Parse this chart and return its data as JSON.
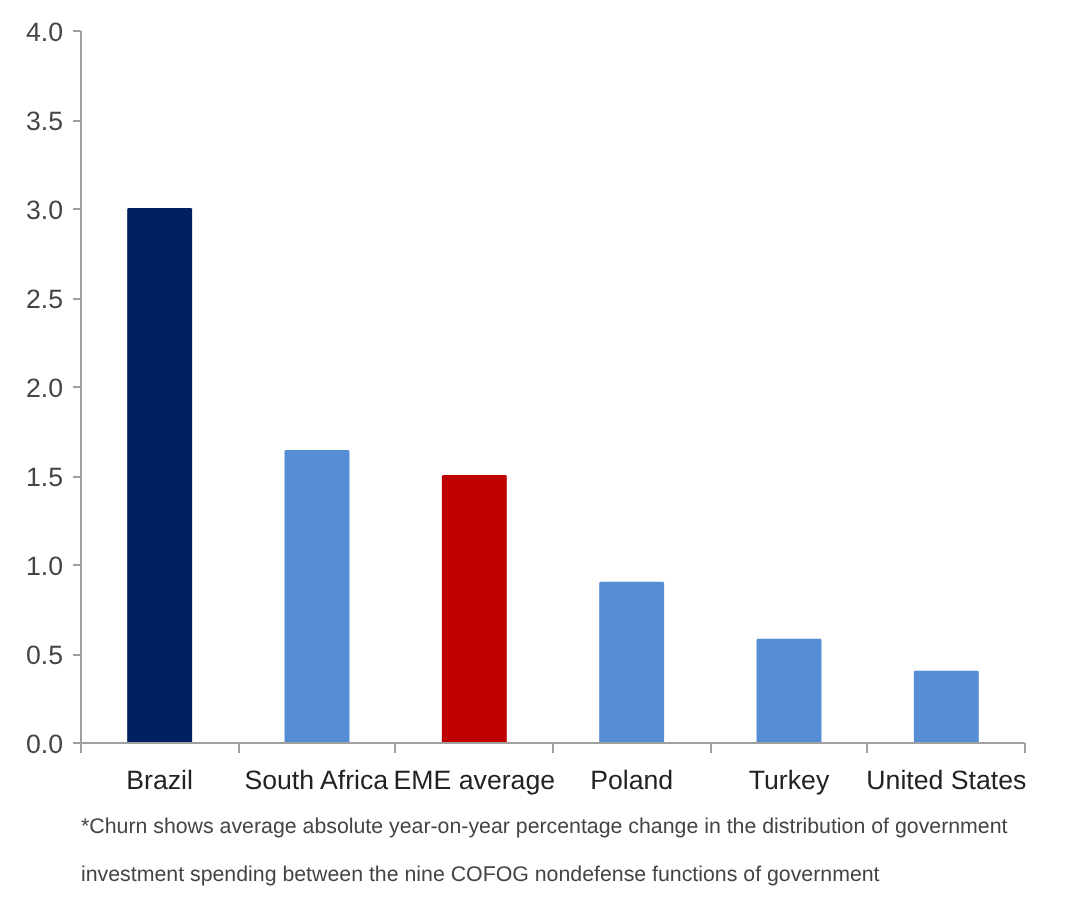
{
  "chart_data": {
    "type": "bar",
    "categories": [
      "Brazil",
      "South Africa",
      "EME average",
      "Poland",
      "Turkey",
      "United States"
    ],
    "values": [
      3.0,
      1.64,
      1.5,
      0.9,
      0.58,
      0.4
    ],
    "colors": [
      "#002060",
      "#558ed5",
      "#c00000",
      "#558ed5",
      "#558ed5",
      "#558ed5"
    ],
    "ylim": [
      0,
      4.0
    ],
    "yticks": [
      {
        "value": 0,
        "label": "0.0"
      },
      {
        "value": 0.5,
        "label": "0.5"
      },
      {
        "value": 1.0,
        "label": "1.0"
      },
      {
        "value": 1.5,
        "label": "1.5"
      },
      {
        "value": 2.0,
        "label": "2.0"
      },
      {
        "value": 2.5,
        "label": "2.5"
      },
      {
        "value": 3.0,
        "label": "3.0"
      },
      {
        "value": 3.5,
        "label": "3.5"
      },
      {
        "value": 4.0,
        "label": "4.0"
      }
    ],
    "grid": false,
    "annotations": [
      "*Churn shows average absolute year-on-year percentage change in the distribution of government investment spending between the nine COFOG nondefense functions of government"
    ]
  }
}
